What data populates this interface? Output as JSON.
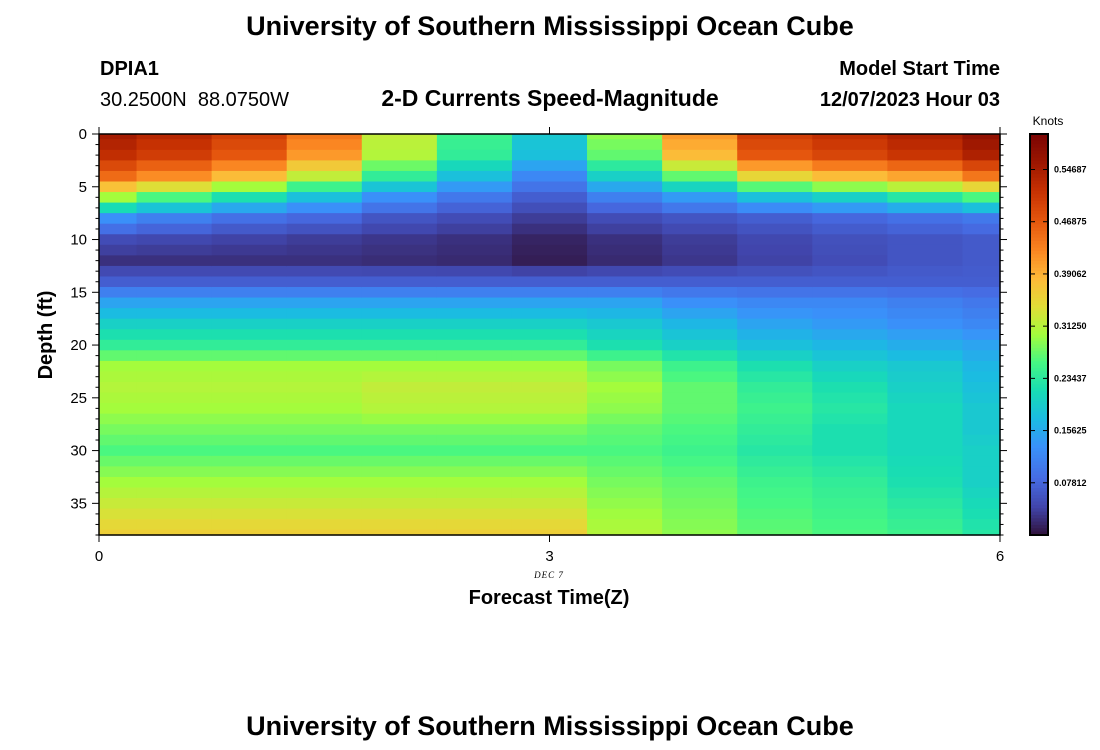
{
  "header": {
    "title": "University of Southern Mississippi Ocean Cube",
    "station_id": "DPIA1",
    "station_coords": "30.2500N  88.0750W",
    "subtitle": "2-D Currents Speed-Magnitude",
    "model_start_label": "Model Start Time",
    "model_start_value": "12/07/2023 Hour 03"
  },
  "footer": {
    "title": "University of Southern Mississippi Ocean Cube"
  },
  "chart_data": {
    "type": "heatmap",
    "title": "2-D Currents Speed-Magnitude",
    "xlabel": "Forecast Time(Z)",
    "ylabel": "Depth (ft)",
    "date_label": "DEC 7",
    "xlim": [
      0,
      6
    ],
    "ylim": [
      0,
      38
    ],
    "y_inverted": true,
    "x_ticks": [
      0,
      3,
      6
    ],
    "y_ticks": [
      0,
      5,
      10,
      15,
      20,
      25,
      30,
      35
    ],
    "time_steps": [
      0,
      0.5,
      1,
      1.5,
      2,
      2.5,
      3,
      3.5,
      4,
      4.5,
      5,
      5.5,
      6
    ],
    "depth_levels": [
      0,
      1,
      2,
      3,
      4,
      5,
      6,
      7,
      8,
      9,
      10,
      11,
      12,
      13,
      14,
      15,
      16,
      17,
      18,
      19,
      20,
      21,
      22,
      23,
      24,
      25,
      26,
      27,
      28,
      29,
      30,
      31,
      32,
      33,
      34,
      35,
      36,
      37,
      38
    ],
    "depth_profiles": [
      [
        0.55,
        0.53,
        0.5,
        0.44,
        0.32,
        0.25,
        0.19,
        0.29,
        0.41,
        0.5,
        0.52,
        0.54,
        0.57
      ],
      [
        0.52,
        0.5,
        0.47,
        0.41,
        0.31,
        0.24,
        0.18,
        0.27,
        0.38,
        0.47,
        0.49,
        0.51,
        0.54
      ],
      [
        0.45,
        0.42,
        0.38,
        0.32,
        0.24,
        0.18,
        0.12,
        0.2,
        0.27,
        0.35,
        0.38,
        0.4,
        0.44
      ],
      [
        0.3,
        0.26,
        0.22,
        0.18,
        0.13,
        0.1,
        0.07,
        0.11,
        0.14,
        0.18,
        0.2,
        0.23,
        0.26
      ],
      [
        0.13,
        0.11,
        0.09,
        0.08,
        0.06,
        0.05,
        0.035,
        0.05,
        0.06,
        0.07,
        0.08,
        0.09,
        0.1
      ],
      [
        0.05,
        0.045,
        0.04,
        0.035,
        0.03,
        0.025,
        0.015,
        0.025,
        0.035,
        0.045,
        0.055,
        0.06,
        0.065
      ],
      [
        0.025,
        0.025,
        0.025,
        0.025,
        0.022,
        0.02,
        0.01,
        0.02,
        0.03,
        0.04,
        0.05,
        0.06,
        0.065
      ],
      [
        0.07,
        0.07,
        0.07,
        0.07,
        0.07,
        0.07,
        0.07,
        0.07,
        0.07,
        0.07,
        0.07,
        0.07,
        0.07
      ],
      [
        0.15,
        0.15,
        0.15,
        0.15,
        0.15,
        0.15,
        0.15,
        0.15,
        0.13,
        0.12,
        0.12,
        0.11,
        0.1
      ],
      [
        0.2,
        0.2,
        0.2,
        0.2,
        0.2,
        0.2,
        0.2,
        0.19,
        0.17,
        0.15,
        0.14,
        0.13,
        0.12
      ],
      [
        0.24,
        0.24,
        0.24,
        0.24,
        0.24,
        0.24,
        0.24,
        0.22,
        0.2,
        0.18,
        0.17,
        0.16,
        0.15
      ],
      [
        0.3,
        0.3,
        0.3,
        0.3,
        0.3,
        0.3,
        0.3,
        0.28,
        0.25,
        0.22,
        0.2,
        0.19,
        0.17
      ],
      [
        0.31,
        0.31,
        0.31,
        0.31,
        0.32,
        0.32,
        0.32,
        0.3,
        0.27,
        0.24,
        0.22,
        0.2,
        0.18
      ],
      [
        0.3,
        0.3,
        0.3,
        0.3,
        0.31,
        0.31,
        0.31,
        0.29,
        0.27,
        0.25,
        0.23,
        0.21,
        0.19
      ],
      [
        0.28,
        0.28,
        0.28,
        0.28,
        0.28,
        0.28,
        0.28,
        0.27,
        0.26,
        0.24,
        0.22,
        0.21,
        0.19
      ],
      [
        0.26,
        0.26,
        0.26,
        0.26,
        0.26,
        0.26,
        0.26,
        0.26,
        0.25,
        0.23,
        0.22,
        0.21,
        0.2
      ],
      [
        0.3,
        0.3,
        0.3,
        0.3,
        0.3,
        0.3,
        0.3,
        0.28,
        0.27,
        0.25,
        0.24,
        0.22,
        0.2
      ],
      [
        0.36,
        0.36,
        0.36,
        0.36,
        0.36,
        0.36,
        0.36,
        0.31,
        0.29,
        0.27,
        0.26,
        0.25,
        0.23
      ]
    ],
    "depth_profile_depths": [
      0,
      2,
      4,
      6,
      8,
      10,
      12,
      14,
      16,
      18,
      20,
      22,
      24,
      26,
      28,
      30,
      33,
      38
    ],
    "colorbar": {
      "units": "Knots",
      "min": 0,
      "max": 0.6,
      "tick_labels": [
        "0.07812",
        "0.15625",
        "0.23437",
        "0.31250",
        "0.39062",
        "0.46875",
        "0.54687"
      ],
      "tick_values": [
        0.078125,
        0.15625,
        0.234375,
        0.3125,
        0.390625,
        0.46875,
        0.546875
      ],
      "colormap": "turbo"
    }
  }
}
